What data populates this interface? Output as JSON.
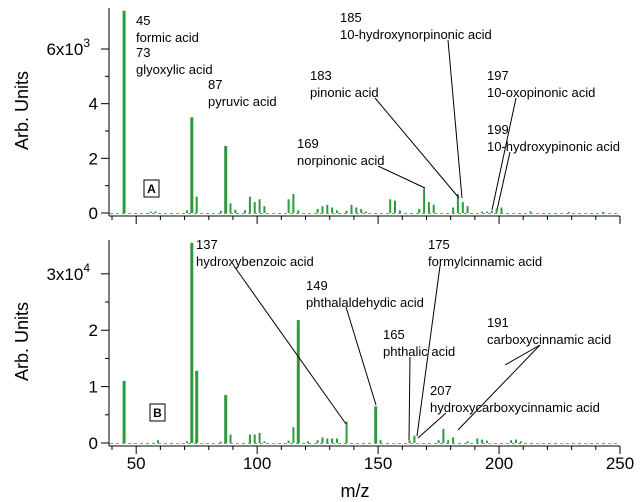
{
  "colors": {
    "bars": "#2e9a3e",
    "axis": "#000000"
  },
  "chart_data": [
    {
      "type": "bar",
      "panel_label": "A",
      "xlabel": "",
      "ylabel": "Arb. Units",
      "xlim": [
        40,
        250
      ],
      "ylim": [
        0,
        7500
      ],
      "y_ticks": [
        {
          "value": 0,
          "label": "0"
        },
        {
          "value": 2000,
          "label": "2"
        },
        {
          "value": 4000,
          "label": "4"
        },
        {
          "value": 6000,
          "label": "6x10",
          "exp": "3"
        }
      ],
      "x": [
        45,
        56,
        58,
        71,
        73,
        75,
        85,
        87,
        89,
        91,
        95,
        97,
        99,
        101,
        103,
        113,
        115,
        117,
        125,
        127,
        129,
        131,
        133,
        137,
        139,
        141,
        143,
        145,
        155,
        157,
        159,
        167,
        169,
        171,
        173,
        181,
        183,
        185,
        187,
        193,
        195,
        197,
        199,
        201,
        213,
        229,
        243
      ],
      "values": [
        7400,
        50,
        60,
        100,
        3500,
        600,
        80,
        2450,
        350,
        120,
        100,
        600,
        400,
        500,
        250,
        500,
        700,
        100,
        150,
        250,
        300,
        200,
        100,
        80,
        300,
        200,
        150,
        50,
        500,
        450,
        100,
        150,
        900,
        400,
        300,
        200,
        700,
        400,
        250,
        50,
        50,
        80,
        150,
        200,
        60,
        40,
        40
      ],
      "annotations": [
        {
          "mz": "45",
          "name": "formic acid"
        },
        {
          "mz": "73",
          "name": "glyoxylic acid"
        },
        {
          "mz": "87",
          "name": "pyruvic acid"
        },
        {
          "mz": "169",
          "name": "norpinonic acid"
        },
        {
          "mz": "183",
          "name": "pinonic acid"
        },
        {
          "mz": "185",
          "name": "10-hydroxynorpinonic acid"
        },
        {
          "mz": "197",
          "name": "10-oxopinonic acid"
        },
        {
          "mz": "199",
          "name": "10-hydroxypinonic acid"
        }
      ]
    },
    {
      "type": "bar",
      "panel_label": "B",
      "xlabel": "m/z",
      "ylabel": "Arb. Units",
      "xlim": [
        40,
        250
      ],
      "ylim": [
        0,
        36000
      ],
      "y_ticks": [
        {
          "value": 0,
          "label": "0"
        },
        {
          "value": 10000,
          "label": "1"
        },
        {
          "value": 20000,
          "label": "2"
        },
        {
          "value": 30000,
          "label": "3x10",
          "exp": "4"
        }
      ],
      "x_ticks": [
        50,
        100,
        150,
        200,
        250
      ],
      "x": [
        45,
        59,
        71,
        73,
        75,
        85,
        87,
        89,
        97,
        99,
        101,
        103,
        113,
        115,
        117,
        121,
        125,
        127,
        129,
        131,
        133,
        137,
        149,
        151,
        163,
        165,
        175,
        177,
        179,
        181,
        187,
        191,
        193,
        195,
        205,
        207,
        209
      ],
      "values": [
        11000,
        500,
        300,
        35500,
        12800,
        200,
        8500,
        1500,
        1500,
        1500,
        1800,
        300,
        400,
        2800,
        21800,
        300,
        500,
        1000,
        800,
        800,
        800,
        3800,
        6500,
        500,
        500,
        1300,
        500,
        2500,
        500,
        1000,
        300,
        800,
        600,
        400,
        500,
        600,
        300
      ],
      "annotations": [
        {
          "mz": "137",
          "name": "hydroxybenzoic acid"
        },
        {
          "mz": "149",
          "name": "phthalaldehydic acid"
        },
        {
          "mz": "165",
          "name": "phthalic acid"
        },
        {
          "mz": "175",
          "name": "formylcinnamic acid"
        },
        {
          "mz": "191",
          "name": "carboxycinnamic acid"
        },
        {
          "mz": "207",
          "name": "hydroxycarboxycinnamic acid"
        }
      ]
    }
  ]
}
